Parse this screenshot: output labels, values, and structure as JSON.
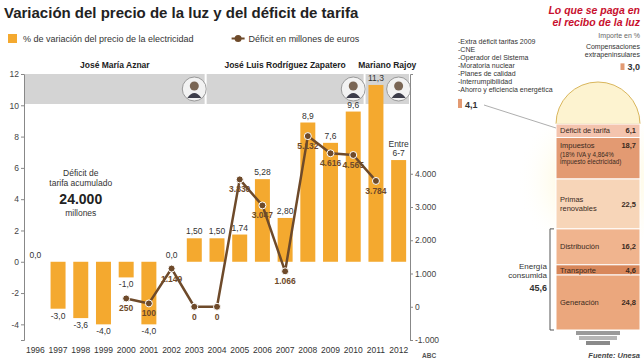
{
  "chart_data": [
    {
      "type": "bar",
      "title": "Variación del precio de la luz y del déficit de tarifa",
      "categories": [
        "1996",
        "1997",
        "1998",
        "1999",
        "2000",
        "2001",
        "2002",
        "2003",
        "2004",
        "2005",
        "2006",
        "2007",
        "2008",
        "2009",
        "2010",
        "2011",
        "2012"
      ],
      "ylim": [
        -5,
        12
      ],
      "yticks": [
        -4,
        -2,
        0,
        2,
        4,
        6,
        8,
        10,
        12
      ],
      "y2lim": [
        -1000,
        7000
      ],
      "y2ticks": [
        {
          "value": -1000,
          "label": "-1.000"
        },
        0,
        {
          "value": 1000,
          "label": "1.000"
        },
        {
          "value": 2000,
          "label": "2.000"
        },
        {
          "value": 3000,
          "label": "3.000"
        },
        {
          "value": 4000,
          "label": "4.000"
        }
      ],
      "legend": "top",
      "data_labels": true,
      "series": [
        {
          "name": "% de variación del precio de la electricidad",
          "type": "bar",
          "color": "#f4a92f",
          "values": [
            0,
            -3,
            -3.6,
            -4,
            -1,
            -4,
            0,
            1.5,
            1.5,
            1.74,
            5.28,
            2.8,
            8.9,
            7.6,
            9.6,
            11.3,
            6.5
          ],
          "value_labels": [
            "0,0",
            "-3,0",
            "-3,6",
            "-4,0",
            "-1,0",
            "-4,0",
            "0,0",
            "1,50",
            "1,50",
            "1,74",
            "5,28",
            "2,80",
            "8,9",
            "7,6",
            "9,6",
            "11,3",
            "Entre 6-7"
          ]
        },
        {
          "name": "Déficit en millones de euros",
          "type": "line",
          "axis": "y2",
          "color": "#6e4a2a",
          "marker": "circle",
          "values": [
            null,
            null,
            null,
            null,
            250,
            100,
            1149,
            0,
            0,
            3830,
            3047,
            1066,
            5132,
            4616,
            4565,
            3784,
            null
          ],
          "value_labels": [
            null,
            null,
            null,
            null,
            "250",
            "100",
            "1.149",
            "0",
            "0",
            "3.830",
            "3.047",
            "1.066",
            "5.132",
            "4.616",
            "4.565",
            "3.784",
            null
          ]
        }
      ],
      "periods": [
        {
          "label": "José María Aznar",
          "from": "1996",
          "to": "2003"
        },
        {
          "label": "José Luis Rodríguez Zapatero",
          "from": "2004",
          "to": "2010"
        },
        {
          "label": "Mariano Rajoy",
          "from": "2011",
          "to": "2012"
        }
      ],
      "total_deficit": {
        "label": "Déficit de tarifa acumulado",
        "amount": "24.000",
        "unit": "millones"
      },
      "credit": "ABC"
    },
    {
      "type": "bar",
      "stacked": true,
      "title": "Lo que se paga en el recibo de la luz",
      "subtitle": "Importe en %",
      "categories": [
        "Déficit de tarifa",
        "Impuestos",
        "Primas renovables",
        "Distribución",
        "Transporte",
        "Generación"
      ],
      "values": [
        6.1,
        18.7,
        22.5,
        16.2,
        4.6,
        24.8
      ],
      "value_labels": [
        "6,1",
        "18,7",
        "22,5",
        "16,2",
        "4,6",
        "24,8"
      ],
      "colors": [
        "#f4c4ae",
        "#e39a72",
        "#f7d5b8",
        "#f0b48e",
        "#d8875a",
        "#eba77d"
      ],
      "data_labels": true,
      "tick_labels": false,
      "details": [
        {
          "category": "Impuestos",
          "text": "(18% IVA y 4,864% impuesto electricidad)"
        }
      ],
      "group": {
        "label": "Energía consumida",
        "categories": [
          "Distribución",
          "Transporte",
          "Generación"
        ],
        "value": 45.6,
        "value_label": "45,6"
      },
      "callouts": [
        {
          "items": [
            "-Extra déficit tarifas 2009",
            "-CNE",
            "-Operador del Sistema",
            "-Moratoria nuclear",
            "-Planes de calidad",
            "-Interrumpibilidad",
            "-Ahorro y eficiencia energética"
          ],
          "value": 4.1,
          "value_label": "4,1"
        },
        {
          "label": "Compensaciones extrapeninsulares",
          "value": 3.0,
          "value_label": "3,0"
        }
      ],
      "source": "Fuente: Unesa"
    }
  ]
}
